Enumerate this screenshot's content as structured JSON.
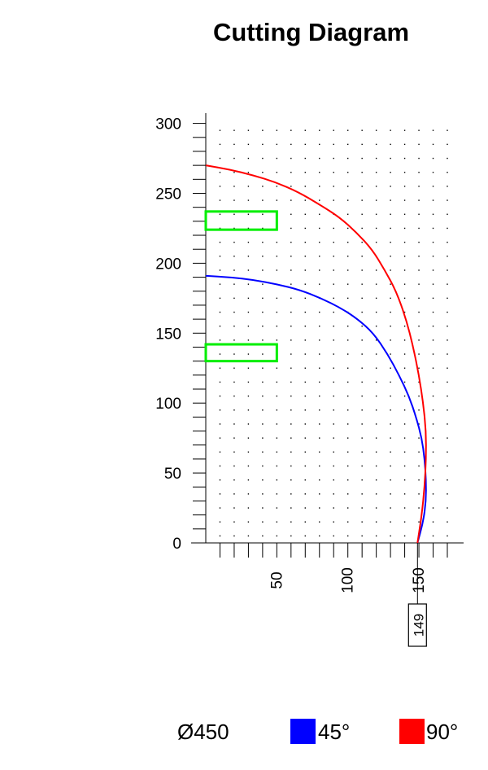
{
  "chart_data": {
    "type": "line",
    "title": "Cutting Diagram",
    "xlabel": "",
    "ylabel": "",
    "xlim": [
      0,
      170
    ],
    "ylim": [
      0,
      305
    ],
    "x_ticks": [
      50,
      100,
      150
    ],
    "y_ticks": [
      0,
      50,
      100,
      150,
      200,
      250,
      300
    ],
    "grid": "dots",
    "marker_label": "149",
    "marker_x": 149,
    "diameter_label": "Ø450",
    "series": [
      {
        "name": "45°",
        "color": "#0000ff",
        "x": [
          149,
          153,
          155,
          155,
          154,
          152,
          148,
          143,
          136,
          128,
          118,
          107,
          95,
          81,
          66,
          50,
          34,
          17,
          0
        ],
        "y": [
          0,
          15,
          30,
          45,
          60,
          75,
          90,
          105,
          120,
          135,
          150,
          160,
          168,
          175,
          181,
          185,
          188,
          190,
          191
        ]
      },
      {
        "name": "90°",
        "color": "#ff0000",
        "x": [
          149,
          152,
          154,
          155,
          155,
          153,
          150,
          146,
          141,
          134,
          126,
          117,
          106,
          94,
          80,
          65,
          49,
          33,
          17,
          0
        ],
        "y": [
          0,
          20,
          40,
          60,
          80,
          100,
          120,
          140,
          160,
          180,
          195,
          210,
          222,
          233,
          242,
          251,
          258,
          263,
          267,
          270
        ]
      }
    ],
    "rectangles": [
      {
        "x0": 0,
        "x1": 50,
        "y0": 224,
        "y1": 237,
        "color": "#00ee00"
      },
      {
        "x0": 0,
        "x1": 50,
        "y0": 130,
        "y1": 142,
        "color": "#00ee00"
      }
    ]
  },
  "legend": [
    {
      "label": "45°",
      "color": "#0000ff"
    },
    {
      "label": "90°",
      "color": "#ff0000"
    }
  ]
}
